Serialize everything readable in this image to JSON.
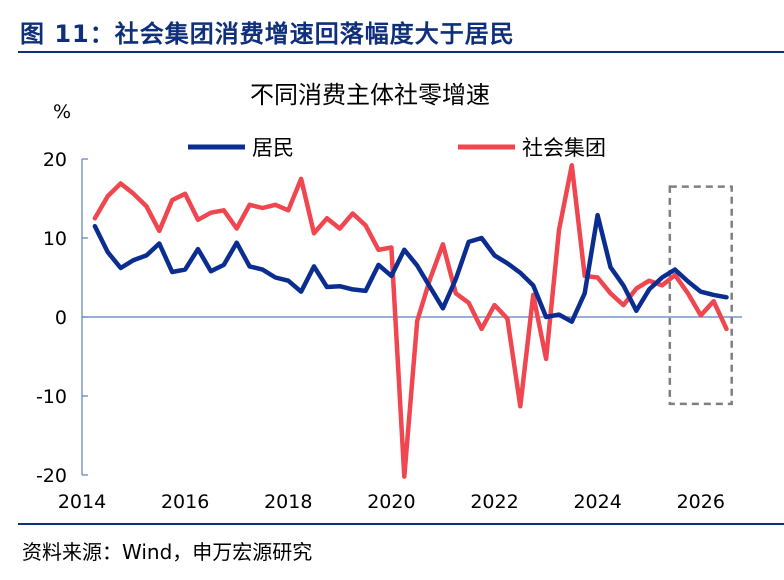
{
  "figure": {
    "title": "图 11：社会集团消费增速回落幅度大于居民",
    "source": "资料来源：Wind，申万宏源研究"
  },
  "colors": {
    "residents": "#0a2d8f",
    "social_groups": "#f04650",
    "axis": "#5b7fbf",
    "title_bar": "#0f2f7a"
  },
  "chart_data": {
    "type": "line",
    "title": "不同消费主体社零增速",
    "ylabel": "%",
    "xlim": [
      2014,
      2026.8
    ],
    "ylim": [
      -20,
      20
    ],
    "yticks": [
      20,
      10,
      0,
      -10,
      -20
    ],
    "xticks": [
      2014,
      2016,
      2018,
      2020,
      2022,
      2024,
      2026
    ],
    "legend_position": "top",
    "forecast_box": {
      "x_range": [
        2025.4,
        2026.6
      ],
      "y_range": [
        -11,
        16.5
      ]
    },
    "series": [
      {
        "name": "居民",
        "color": "#0a2d8f",
        "points": [
          [
            2014.25,
            11.5
          ],
          [
            2014.5,
            8.2
          ],
          [
            2014.75,
            6.2
          ],
          [
            2015.0,
            7.2
          ],
          [
            2015.25,
            7.8
          ],
          [
            2015.5,
            9.3
          ],
          [
            2015.75,
            5.7
          ],
          [
            2016.0,
            6.0
          ],
          [
            2016.25,
            8.6
          ],
          [
            2016.5,
            5.8
          ],
          [
            2016.75,
            6.6
          ],
          [
            2017.0,
            9.4
          ],
          [
            2017.25,
            6.4
          ],
          [
            2017.5,
            6.0
          ],
          [
            2017.75,
            5.0
          ],
          [
            2018.0,
            4.6
          ],
          [
            2018.25,
            3.2
          ],
          [
            2018.5,
            6.4
          ],
          [
            2018.75,
            3.8
          ],
          [
            2019.0,
            3.9
          ],
          [
            2019.25,
            3.5
          ],
          [
            2019.5,
            3.3
          ],
          [
            2019.75,
            6.6
          ],
          [
            2020.0,
            5.2
          ],
          [
            2020.25,
            8.5
          ],
          [
            2020.5,
            6.5
          ],
          [
            2020.75,
            3.8
          ],
          [
            2021.0,
            1.1
          ],
          [
            2021.25,
            4.8
          ],
          [
            2021.5,
            9.5
          ],
          [
            2021.75,
            10.0
          ],
          [
            2022.0,
            7.8
          ],
          [
            2022.25,
            6.8
          ],
          [
            2022.5,
            5.6
          ],
          [
            2022.75,
            4.0
          ],
          [
            2023.0,
            0.0
          ],
          [
            2023.25,
            0.3
          ],
          [
            2023.5,
            -0.6
          ],
          [
            2023.75,
            3.0
          ],
          [
            2024.0,
            12.9
          ],
          [
            2024.25,
            6.3
          ],
          [
            2024.5,
            4.0
          ],
          [
            2024.75,
            0.8
          ],
          [
            2025.0,
            3.5
          ],
          [
            2025.25,
            5.0
          ],
          [
            2025.5,
            6.0
          ],
          [
            2025.75,
            4.5
          ],
          [
            2026.0,
            3.2
          ],
          [
            2026.25,
            2.8
          ],
          [
            2026.5,
            2.5
          ]
        ]
      },
      {
        "name": "社会集团",
        "color": "#f04650",
        "points": [
          [
            2014.25,
            12.5
          ],
          [
            2014.5,
            15.3
          ],
          [
            2014.75,
            16.9
          ],
          [
            2015.0,
            15.6
          ],
          [
            2015.25,
            14.0
          ],
          [
            2015.5,
            10.9
          ],
          [
            2015.75,
            14.8
          ],
          [
            2016.0,
            15.6
          ],
          [
            2016.25,
            12.3
          ],
          [
            2016.5,
            13.2
          ],
          [
            2016.75,
            13.5
          ],
          [
            2017.0,
            11.2
          ],
          [
            2017.25,
            14.2
          ],
          [
            2017.5,
            13.8
          ],
          [
            2017.75,
            14.2
          ],
          [
            2018.0,
            13.5
          ],
          [
            2018.25,
            17.5
          ],
          [
            2018.5,
            10.6
          ],
          [
            2018.75,
            12.5
          ],
          [
            2019.0,
            11.2
          ],
          [
            2019.25,
            13.1
          ],
          [
            2019.5,
            11.6
          ],
          [
            2019.75,
            8.5
          ],
          [
            2020.0,
            8.8
          ],
          [
            2020.25,
            -20.2
          ],
          [
            2020.5,
            -0.5
          ],
          [
            2020.75,
            4.8
          ],
          [
            2021.0,
            9.2
          ],
          [
            2021.25,
            3.0
          ],
          [
            2021.5,
            1.8
          ],
          [
            2021.75,
            -1.5
          ],
          [
            2022.0,
            1.5
          ],
          [
            2022.25,
            -0.2
          ],
          [
            2022.5,
            -11.3
          ],
          [
            2022.75,
            2.8
          ],
          [
            2023.0,
            -5.3
          ],
          [
            2023.25,
            11.0
          ],
          [
            2023.5,
            19.2
          ],
          [
            2023.75,
            5.2
          ],
          [
            2024.0,
            5.0
          ],
          [
            2024.25,
            3.0
          ],
          [
            2024.5,
            1.5
          ],
          [
            2024.75,
            3.6
          ],
          [
            2025.0,
            4.6
          ],
          [
            2025.25,
            4.0
          ],
          [
            2025.5,
            5.3
          ],
          [
            2025.75,
            3.0
          ],
          [
            2026.0,
            0.2
          ],
          [
            2026.25,
            2.0
          ],
          [
            2026.5,
            -1.5
          ]
        ]
      }
    ]
  }
}
